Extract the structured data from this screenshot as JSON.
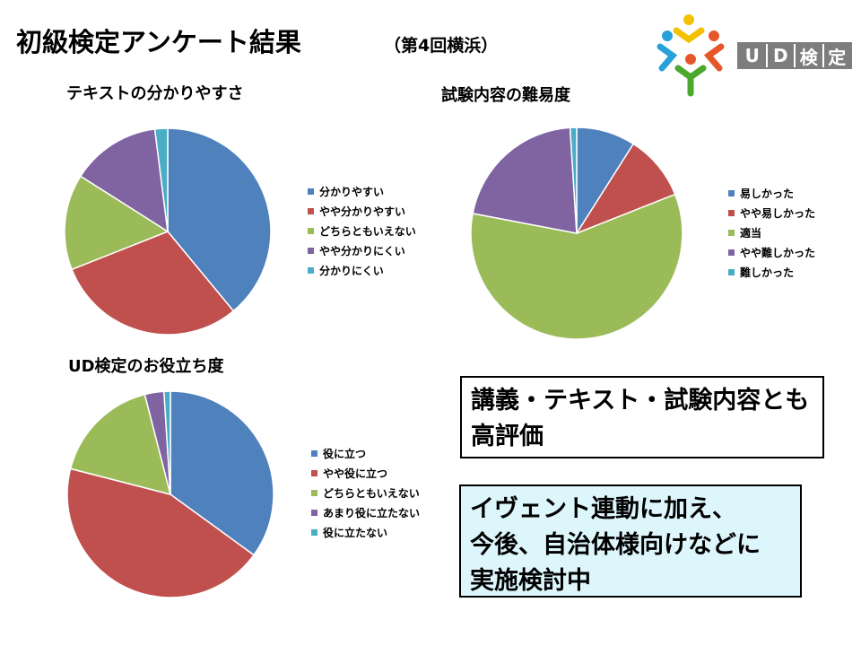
{
  "header": {
    "title": "初級検定アンケート結果",
    "subtitle": "（第4回横浜）",
    "logo_text": [
      "U",
      "D",
      "検",
      "定"
    ]
  },
  "colors": {
    "blue": "#4f81bd",
    "red": "#c0504d",
    "green": "#9bbb59",
    "purple": "#8064a2",
    "cyan": "#4bacc6"
  },
  "chart_data": [
    {
      "type": "pie",
      "title": "テキストの分かりやすさ",
      "categories": [
        "分かりやすい",
        "やや分かりやすい",
        "どちらともいえない",
        "やや分かりにくい",
        "分かりにくい"
      ],
      "values": [
        39,
        30,
        15,
        14,
        2
      ],
      "legend": "right"
    },
    {
      "type": "pie",
      "title": "試験内容の難易度",
      "categories": [
        "易しかった",
        "やや易しかった",
        "適当",
        "やや難しかった",
        "難しかった"
      ],
      "values": [
        9,
        10,
        59,
        21,
        1
      ],
      "legend": "right"
    },
    {
      "type": "pie",
      "title": "UD検定のお役立ち度",
      "categories": [
        "役に立つ",
        "やや役に立つ",
        "どちらともいえない",
        "あまり役に立たない",
        "役に立たない"
      ],
      "values": [
        35,
        44,
        17,
        3,
        1
      ],
      "legend": "right"
    }
  ],
  "notes": {
    "box1": [
      "講義・テキスト・試験内容とも",
      "高評価"
    ],
    "box2": [
      "イヴェント連動に加え、",
      "今後、自治体様向けなどに",
      "実施検討中"
    ]
  }
}
